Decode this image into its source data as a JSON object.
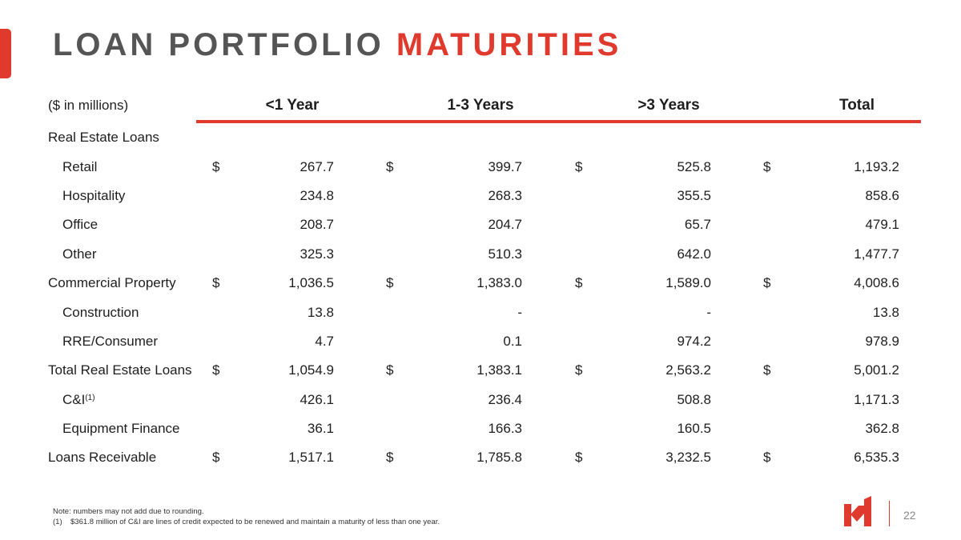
{
  "title": {
    "part1": "LOAN PORTFOLIO ",
    "part2": "MATURITIES"
  },
  "colors": {
    "accent": "#e03a2f",
    "title_gray": "#555555",
    "subtotal_bg": "#f1f1f1"
  },
  "table": {
    "unit_label": "($ in millions)",
    "columns": [
      "<1 Year",
      "1-3 Years",
      ">3 Years",
      "Total"
    ],
    "rows": [
      {
        "type": "section",
        "label": "Real Estate Loans"
      },
      {
        "type": "item",
        "label": "Retail",
        "dollar": true,
        "values": [
          "267.7",
          "399.7",
          "525.8",
          "1,193.2"
        ]
      },
      {
        "type": "item",
        "label": "Hospitality",
        "values": [
          "234.8",
          "268.3",
          "355.5",
          "858.6"
        ]
      },
      {
        "type": "item",
        "label": "Office",
        "values": [
          "208.7",
          "204.7",
          "65.7",
          "479.1"
        ]
      },
      {
        "type": "item",
        "label": "Other",
        "values": [
          "325.3",
          "510.3",
          "642.0",
          "1,477.7"
        ]
      },
      {
        "type": "subtotal",
        "label": "Commercial Property",
        "dollar": true,
        "values": [
          "1,036.5",
          "1,383.0",
          "1,589.0",
          "4,008.6"
        ]
      },
      {
        "type": "item",
        "label": "Construction",
        "values": [
          "13.8",
          "-",
          "-",
          "13.8"
        ]
      },
      {
        "type": "item",
        "label": "RRE/Consumer",
        "values": [
          "4.7",
          "0.1",
          "974.2",
          "978.9"
        ]
      },
      {
        "type": "subtotal",
        "label": "Total Real Estate Loans",
        "dollar": true,
        "values": [
          "1,054.9",
          "1,383.1",
          "2,563.2",
          "5,001.2"
        ]
      },
      {
        "type": "item",
        "label": "C&I",
        "sup": "(1)",
        "values": [
          "426.1",
          "236.4",
          "508.8",
          "1,171.3"
        ]
      },
      {
        "type": "item",
        "label": "Equipment Finance",
        "values": [
          "36.1",
          "166.3",
          "160.5",
          "362.8"
        ]
      },
      {
        "type": "subtotal",
        "label": "Loans Receivable",
        "dollar": true,
        "values": [
          "1,517.1",
          "1,785.8",
          "3,232.5",
          "6,535.3"
        ]
      }
    ]
  },
  "currency_symbol": "$",
  "footnotes": {
    "note": "Note: numbers may not add due to rounding.",
    "fn1_marker": "(1)",
    "fn1_text": "$361.8 million of C&I are lines of credit expected to be renewed and maintain a maturity of less than one year."
  },
  "page_number": "22"
}
